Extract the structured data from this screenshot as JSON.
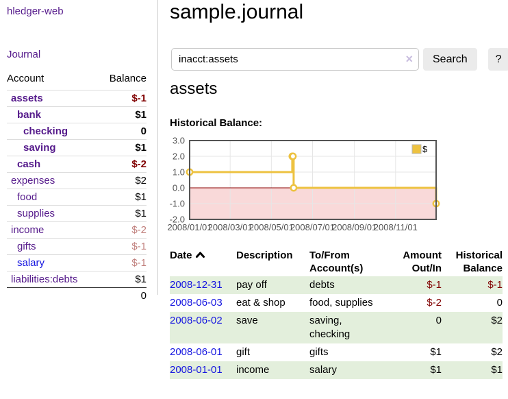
{
  "app": {
    "title": "hledger-web"
  },
  "sidebar": {
    "journal_link": "Journal",
    "table": {
      "headers": [
        "Account",
        "Balance"
      ],
      "accounts": [
        {
          "name": "assets",
          "level": 0,
          "bold": true,
          "balance": "$-1",
          "balance_style": "neg-strong",
          "link_style": "visited"
        },
        {
          "name": "bank",
          "level": 1,
          "bold": true,
          "balance": "$1",
          "balance_style": "pos",
          "link_style": "visited"
        },
        {
          "name": "checking",
          "level": 2,
          "bold": true,
          "balance": "0",
          "balance_style": "pos",
          "link_style": "visited"
        },
        {
          "name": "saving",
          "level": 2,
          "bold": true,
          "balance": "$1",
          "balance_style": "pos",
          "link_style": "visited"
        },
        {
          "name": "cash",
          "level": 1,
          "bold": true,
          "balance": "$-2",
          "balance_style": "neg-strong",
          "link_style": "visited"
        },
        {
          "name": "expenses",
          "level": 0,
          "bold": false,
          "balance": "$2",
          "balance_style": "pos",
          "link_style": "visited"
        },
        {
          "name": "food",
          "level": 1,
          "bold": false,
          "balance": "$1",
          "balance_style": "pos",
          "link_style": "visited"
        },
        {
          "name": "supplies",
          "level": 1,
          "bold": false,
          "balance": "$1",
          "balance_style": "pos",
          "link_style": "visited"
        },
        {
          "name": "income",
          "level": 0,
          "bold": false,
          "balance": "$-2",
          "balance_style": "neg-soft",
          "link_style": "visited"
        },
        {
          "name": "gifts",
          "level": 1,
          "bold": false,
          "balance": "$-1",
          "balance_style": "neg-soft",
          "link_style": "visited"
        },
        {
          "name": "salary",
          "level": 1,
          "bold": false,
          "balance": "$-1",
          "balance_style": "neg-soft",
          "link_style": "unvisited"
        },
        {
          "name": "liabilities:debts",
          "level": 0,
          "bold": false,
          "balance": "$1",
          "balance_style": "pos",
          "link_style": "visited"
        }
      ],
      "total": "0"
    }
  },
  "header": {
    "title": "sample.journal"
  },
  "search": {
    "value": "inacct:assets",
    "clear_icon": "×",
    "button_label": "Search",
    "help_label": "?"
  },
  "account_page": {
    "heading": "assets",
    "chart_label": "Historical Balance:"
  },
  "chart_data": {
    "type": "line",
    "step": true,
    "title": "Historical Balance:",
    "xlabel": "",
    "ylabel": "",
    "series": [
      {
        "name": "$",
        "color": "#EDC240",
        "points": [
          [
            "2008-01-01",
            1
          ],
          [
            "2008-06-01",
            2
          ],
          [
            "2008-06-02",
            2
          ],
          [
            "2008-06-03",
            0
          ],
          [
            "2008-12-31",
            -1
          ]
        ]
      }
    ],
    "xlim": [
      "2008-01-01",
      "2008-12-31"
    ],
    "ylim": [
      -2,
      3
    ],
    "xticks": [
      "2008/01/01",
      "2008/03/01",
      "2008/05/01",
      "2008/07/01",
      "2008/09/01",
      "2008/11/01"
    ],
    "yticks": [
      3.0,
      2.0,
      1.0,
      0.0,
      -1.0,
      -2.0
    ],
    "grid": true,
    "legend_position": "top-right",
    "negative_region_fill": "#f9d9d9",
    "zero_line_color": "#8b0000",
    "tick_color": "#545454"
  },
  "register": {
    "headers": {
      "date": "Date",
      "description": "Description",
      "accounts": "To/From Account(s)",
      "amount": "Amount Out/In",
      "balance": "Historical Balance"
    },
    "rows": [
      {
        "date": "2008-12-31",
        "description": "pay off",
        "accounts": "debts",
        "amount": "$-1",
        "amount_neg": true,
        "balance": "$-1",
        "balance_neg": true
      },
      {
        "date": "2008-06-03",
        "description": "eat & shop",
        "accounts": "food, supplies",
        "amount": "$-2",
        "amount_neg": true,
        "balance": "0",
        "balance_neg": false
      },
      {
        "date": "2008-06-02",
        "description": "save",
        "accounts": "saving, checking",
        "amount": "0",
        "amount_neg": false,
        "balance": "$2",
        "balance_neg": false
      },
      {
        "date": "2008-06-01",
        "description": "gift",
        "accounts": "gifts",
        "amount": "$1",
        "amount_neg": false,
        "balance": "$2",
        "balance_neg": false
      },
      {
        "date": "2008-01-01",
        "description": "income",
        "accounts": "salary",
        "amount": "$1",
        "amount_neg": false,
        "balance": "$1",
        "balance_neg": false
      }
    ]
  },
  "colors": {
    "link_visited": "#551A8B",
    "link_unvisited": "#1414E0",
    "negative_strong": "#800000",
    "negative_soft": "#c1807d",
    "row_highlight": "#e3efdc",
    "series": "#EDC240"
  }
}
